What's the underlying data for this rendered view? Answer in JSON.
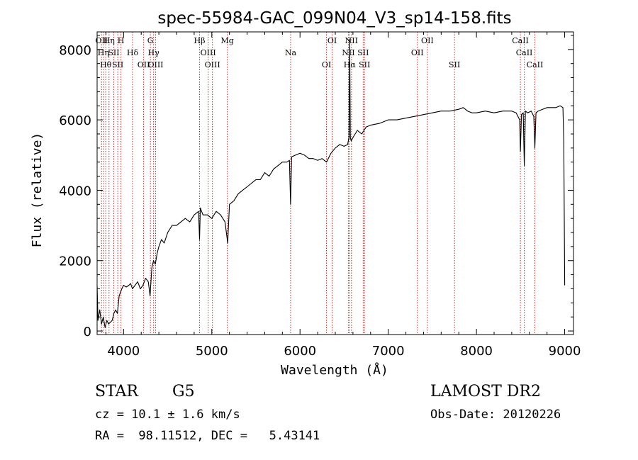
{
  "chart_data": {
    "type": "line",
    "title": "spec-55984-GAC_099N04_V3_sp14-158.fits",
    "xlabel": "Wavelength (Å)",
    "ylabel": "Flux (relative)",
    "xlim": [
      3700,
      9100
    ],
    "ylim": [
      -100,
      8500
    ],
    "grid": false,
    "xticks": [
      4000,
      5000,
      6000,
      7000,
      8000,
      9000
    ],
    "yticks": [
      0,
      2000,
      4000,
      6000,
      8000
    ],
    "xtick_labels": [
      "4000",
      "5000",
      "6000",
      "7000",
      "8000",
      "9000"
    ],
    "ytick_labels": [
      "0",
      "2000",
      "4000",
      "6000",
      "8000"
    ],
    "series": [
      {
        "x": [
          3700,
          3710,
          3730,
          3750,
          3770,
          3790,
          3810,
          3830,
          3850,
          3870,
          3890,
          3910,
          3930,
          3950,
          3980,
          4000,
          4030,
          4060,
          4080,
          4100,
          4130,
          4160,
          4190,
          4220,
          4250,
          4280,
          4300,
          4320,
          4340,
          4360,
          4380,
          4400,
          4430,
          4460,
          4500,
          4550,
          4600,
          4650,
          4700,
          4750,
          4800,
          4850,
          4861,
          4870,
          4900,
          4950,
          5000,
          5050,
          5100,
          5150,
          5180,
          5200,
          5250,
          5300,
          5350,
          5400,
          5450,
          5500,
          5550,
          5600,
          5650,
          5700,
          5750,
          5800,
          5850,
          5880,
          5893,
          5905,
          5950,
          6000,
          6050,
          6100,
          6150,
          6200,
          6250,
          6300,
          6350,
          6400,
          6450,
          6500,
          6540,
          6555,
          6563,
          6570,
          6580,
          6600,
          6650,
          6700,
          6750,
          6800,
          6900,
          7000,
          7100,
          7200,
          7300,
          7400,
          7500,
          7600,
          7700,
          7800,
          7850,
          7900,
          7950,
          8000,
          8100,
          8200,
          8300,
          8400,
          8450,
          8490,
          8498,
          8510,
          8530,
          8542,
          8555,
          8580,
          8620,
          8650,
          8662,
          8675,
          8700,
          8750,
          8800,
          8850,
          8900,
          8950,
          8980,
          8990,
          9000
        ],
        "y": [
          1300,
          300,
          600,
          200,
          400,
          100,
          300,
          200,
          250,
          300,
          500,
          600,
          500,
          1000,
          1200,
          1300,
          1250,
          1300,
          1350,
          1200,
          1300,
          1400,
          1200,
          1300,
          1500,
          1400,
          1000,
          1800,
          2000,
          1900,
          2200,
          2400,
          2600,
          2500,
          2800,
          3000,
          3000,
          3100,
          3200,
          3100,
          3300,
          3400,
          2600,
          3500,
          3300,
          3300,
          3200,
          3400,
          3300,
          3100,
          2500,
          3600,
          3700,
          3900,
          4000,
          4100,
          4200,
          4300,
          4300,
          4500,
          4400,
          4600,
          4700,
          4800,
          4800,
          4850,
          3600,
          4950,
          5000,
          5050,
          5000,
          4900,
          4900,
          4850,
          4900,
          4800,
          5050,
          5200,
          5300,
          5250,
          5300,
          5500,
          8300,
          5500,
          5400,
          5500,
          5700,
          5600,
          5800,
          5850,
          5900,
          6000,
          6000,
          6050,
          6100,
          6150,
          6200,
          6250,
          6250,
          6300,
          6350,
          6250,
          6200,
          6200,
          6250,
          6200,
          6250,
          6250,
          6200,
          6000,
          5100,
          6150,
          6200,
          4700,
          6250,
          6200,
          6250,
          6100,
          5200,
          6200,
          6250,
          6300,
          6350,
          6350,
          6350,
          6400,
          6350,
          5400,
          1300
        ]
      }
    ],
    "line_ids": {
      "x": [
        3750,
        3771,
        3798,
        3835,
        3889,
        3934,
        3970,
        4102,
        4227,
        4304,
        4340,
        4363,
        4861,
        4959,
        5007,
        5176,
        5893,
        6300,
        6364,
        6548,
        6563,
        6583,
        6716,
        6731,
        7444,
        7330,
        7751,
        8498,
        8542,
        8662
      ],
      "labels": [
        "OII",
        "Hη",
        "Hθ",
        "Hη",
        "SII",
        "SII",
        "H",
        "Hδ",
        "OII",
        "G",
        "Hγ",
        "OIII",
        "Hβ",
        "OIII",
        "OIII",
        "Mg",
        "Na",
        "OI",
        "OI",
        "NII",
        "Hα",
        "NII",
        "SII",
        "SII",
        "OII",
        "OII",
        "SII",
        "CaII",
        "CaII",
        "CaII"
      ]
    }
  },
  "annotations": {
    "object_class": "STAR",
    "subclass": "G5",
    "survey": "LAMOST DR2",
    "redshift": "cz = 10.1 ± 1.6 km/s",
    "obs_date": "Obs-Date: 20120226",
    "coords": "RA =  98.11512, DEC =   5.43141"
  },
  "colors": {
    "spectrum": "#000000",
    "line_marker": "#cc2222",
    "axes": "#000000",
    "background": "#ffffff"
  }
}
